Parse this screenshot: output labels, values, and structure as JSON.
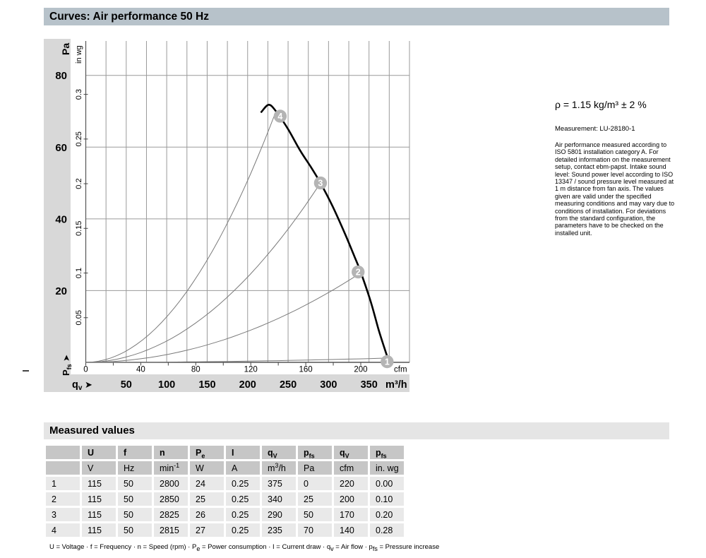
{
  "header": {
    "title": "Curves: Air performance 50 Hz",
    "bar_color": "#b7c2ca"
  },
  "notes": {
    "density": "ρ = 1.15 kg/m³ ± 2 %",
    "measurement": "Measurement: LU-28180-1",
    "paragraph": "Air performance measured according to ISO 5801 installation category A. For detailed information on the measurement setup, contact ebm-papst. Intake sound level: Sound power level according to ISO 13347 / sound pressure level measured at 1 m distance from fan axis. The values given are valid under the specified measuring conditions and may vary due to conditions of installation. For deviations from the standard configuration, the parameters have to be checked on the installed unit."
  },
  "chart_data": {
    "type": "line",
    "title": "Curves: Air performance 50 Hz",
    "x_axis": {
      "unit": "m³/h",
      "label_segments": [
        {
          "t": "q"
        },
        {
          "t": "v",
          "sub": true
        }
      ],
      "arrow": "➤",
      "ticks": [
        50,
        100,
        150,
        200,
        250,
        300,
        350
      ],
      "max": 400,
      "grid_step": 25
    },
    "x_axis_secondary": {
      "unit": "cfm",
      "labeled_ticks": [
        0,
        40,
        80,
        120,
        160,
        200
      ],
      "minor_tick_step": 20,
      "minor_tick_max": 220,
      "m3h_per_cfm": 1.699
    },
    "y_axis": {
      "unit": "Pa",
      "label_segments": [
        {
          "t": "P"
        },
        {
          "t": "fs",
          "sub": true
        }
      ],
      "arrow": "➤",
      "ticks": [
        20,
        40,
        60,
        80
      ],
      "max": 88.8,
      "grid_step": 20
    },
    "y_axis_secondary": {
      "unit": "in wg",
      "ticks": [
        0.05,
        0.1,
        0.15,
        0.2,
        0.25,
        0.3
      ],
      "pa_per_unit": 249
    },
    "grid": "on",
    "fan_curve": {
      "name": "Air performance curve 50 Hz",
      "points_qv_pa": [
        [
          217,
          69.8
        ],
        [
          226,
          71.8
        ],
        [
          235,
          70
        ],
        [
          250,
          65
        ],
        [
          265,
          59
        ],
        [
          278,
          54.5
        ],
        [
          290,
          50
        ],
        [
          305,
          43.5
        ],
        [
          320,
          36
        ],
        [
          332,
          29.5
        ],
        [
          340,
          25
        ],
        [
          352,
          17
        ],
        [
          362,
          9
        ],
        [
          369,
          4
        ],
        [
          375,
          0
        ]
      ]
    },
    "operating_points": [
      {
        "id": "1",
        "qv_m3h": 375,
        "pfs_pa": 0
      },
      {
        "id": "2",
        "qv_m3h": 340,
        "pfs_pa": 25
      },
      {
        "id": "3",
        "qv_m3h": 290,
        "pfs_pa": 50
      },
      {
        "id": "4",
        "qv_m3h": 235,
        "pfs_pa": 70
      }
    ],
    "system_curves_note": "parabolic system resistance curves from origin through operating points",
    "colors": {
      "grid": "#9a9a9a",
      "axis": "#555555",
      "fan_curve": "#000000",
      "system_curve": "#7a7a7a",
      "marker_fill": "#b4b4b4",
      "marker_text": "#ffffff",
      "band": "#d8d8d8"
    }
  },
  "measured": {
    "title": "Measured values",
    "columns": [
      [
        {
          "t": ""
        }
      ],
      [
        {
          "t": "U"
        }
      ],
      [
        {
          "t": "f"
        }
      ],
      [
        {
          "t": "n"
        }
      ],
      [
        {
          "t": "P"
        },
        {
          "t": "e",
          "sub": true
        }
      ],
      [
        {
          "t": "I"
        }
      ],
      [
        {
          "t": "q"
        },
        {
          "t": "V",
          "sub": true
        }
      ],
      [
        {
          "t": "p"
        },
        {
          "t": "fs",
          "sub": true
        }
      ],
      [
        {
          "t": "q"
        },
        {
          "t": "V",
          "sub": true
        }
      ],
      [
        {
          "t": "p"
        },
        {
          "t": "fs",
          "sub": true
        }
      ]
    ],
    "units": [
      [
        {
          "t": ""
        }
      ],
      [
        {
          "t": "V"
        }
      ],
      [
        {
          "t": "Hz"
        }
      ],
      [
        {
          "t": "min"
        },
        {
          "t": "-1",
          "sup": true
        }
      ],
      [
        {
          "t": "W"
        }
      ],
      [
        {
          "t": "A"
        }
      ],
      [
        {
          "t": "m"
        },
        {
          "t": "3",
          "sup": true
        },
        {
          "t": "/h"
        }
      ],
      [
        {
          "t": "Pa"
        }
      ],
      [
        {
          "t": "cfm"
        }
      ],
      [
        {
          "t": "in. wg"
        }
      ]
    ],
    "rows": [
      [
        "1",
        "115",
        "50",
        "2800",
        "24",
        "0.25",
        "375",
        "0",
        "220",
        "0.00"
      ],
      [
        "2",
        "115",
        "50",
        "2850",
        "25",
        "0.25",
        "340",
        "25",
        "200",
        "0.10"
      ],
      [
        "3",
        "115",
        "50",
        "2825",
        "26",
        "0.25",
        "290",
        "50",
        "170",
        "0.20"
      ],
      [
        "4",
        "115",
        "50",
        "2815",
        "27",
        "0.25",
        "235",
        "70",
        "140",
        "0.28"
      ]
    ],
    "footnote_segments": [
      {
        "t": "U = Voltage · f = Frequency · n = Speed (rpm) · P"
      },
      {
        "t": "e",
        "sub": true
      },
      {
        "t": " = Power consumption · I = Current draw · q"
      },
      {
        "t": "v",
        "sub": true
      },
      {
        "t": " = Air flow · p"
      },
      {
        "t": "fs",
        "sub": true
      },
      {
        "t": " = Pressure increase"
      }
    ]
  }
}
